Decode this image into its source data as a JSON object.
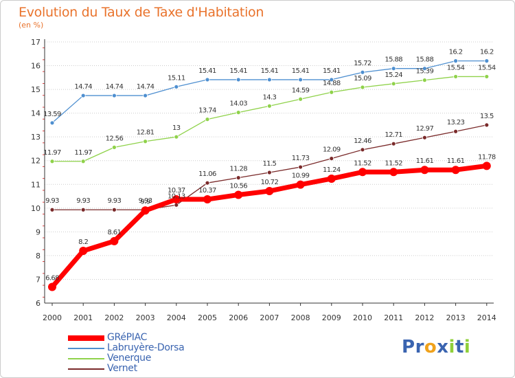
{
  "title": "Evolution du Taux de Taxe d'Habitation",
  "subtitle": "(en %)",
  "colors": {
    "title": "#e9732c",
    "axis": "#333333",
    "grid": "#cccccc",
    "legend_text": "#3a64b0"
  },
  "chart_data": {
    "type": "line",
    "x": [
      "2000",
      "2001",
      "2002",
      "2003",
      "2004",
      "2005",
      "2006",
      "2007",
      "2008",
      "2009",
      "2010",
      "2011",
      "2012",
      "2013",
      "2014"
    ],
    "ylim": [
      6,
      17
    ],
    "yticks": [
      6,
      7,
      8,
      9,
      10,
      11,
      12,
      13,
      14,
      15,
      16,
      17
    ],
    "grid": "horizontal-dotted",
    "legend_position": "bottom-left",
    "series": [
      {
        "name": "GRéPIAC",
        "color": "#ff0000",
        "labels": [
          "6.68",
          "8.2",
          "8.61",
          "9.9",
          "10.37",
          "10.37",
          "10.56",
          "10.72",
          "10.99",
          "11.24",
          "11.52",
          "11.52",
          "11.61",
          "11.61",
          "11.78"
        ],
        "values": [
          6.68,
          8.2,
          8.61,
          9.9,
          10.37,
          10.37,
          10.56,
          10.72,
          10.99,
          11.24,
          11.52,
          11.52,
          11.61,
          11.61,
          11.78
        ]
      },
      {
        "name": "Labruyère-Dorsa",
        "color": "#4e8fd0",
        "labels": [
          "13.59",
          "14.74",
          "14.74",
          "14.74",
          "15.11",
          "15.41",
          "15.41",
          "15.41",
          "15.41",
          "15.41",
          "15.72",
          "15.88",
          "15.88",
          "16.2",
          "16.2"
        ],
        "values": [
          13.59,
          14.74,
          14.74,
          14.74,
          15.11,
          15.41,
          15.41,
          15.41,
          15.41,
          15.41,
          15.72,
          15.88,
          15.88,
          16.2,
          16.2
        ]
      },
      {
        "name": "Venerque",
        "color": "#8fd24a",
        "labels": [
          "11.97",
          "11.97",
          "12.56",
          "12.81",
          "13",
          "13.74",
          "14.03",
          "14.3",
          "14.59",
          "14.88",
          "15.09",
          "15.24",
          "15.39",
          "15.54",
          "15.54"
        ],
        "values": [
          11.97,
          11.97,
          12.56,
          12.81,
          13,
          13.74,
          14.03,
          14.3,
          14.59,
          14.88,
          15.09,
          15.24,
          15.39,
          15.54,
          15.54
        ]
      },
      {
        "name": "Vernet",
        "color": "#7a2a2a",
        "labels": [
          "9.93",
          "9.93",
          "9.93",
          "9.93",
          "10.13",
          "11.06",
          "11.28",
          "11.5",
          "11.73",
          "12.09",
          "12.46",
          "12.71",
          "12.97",
          "13.23",
          "13.5"
        ],
        "values": [
          9.93,
          9.93,
          9.93,
          9.93,
          10.13,
          11.06,
          11.28,
          11.5,
          11.73,
          12.09,
          12.46,
          12.71,
          12.97,
          13.23,
          13.5
        ]
      }
    ]
  },
  "logo": {
    "text_letters": [
      "P",
      "r",
      "o",
      "x",
      "i",
      "t",
      "i"
    ],
    "letter_colors": [
      "#3a64b0",
      "#3a64b0",
      "#f0a21c",
      "#3a64b0",
      "#8fcf3a",
      "#3a64b0",
      "#8fcf3a"
    ]
  }
}
